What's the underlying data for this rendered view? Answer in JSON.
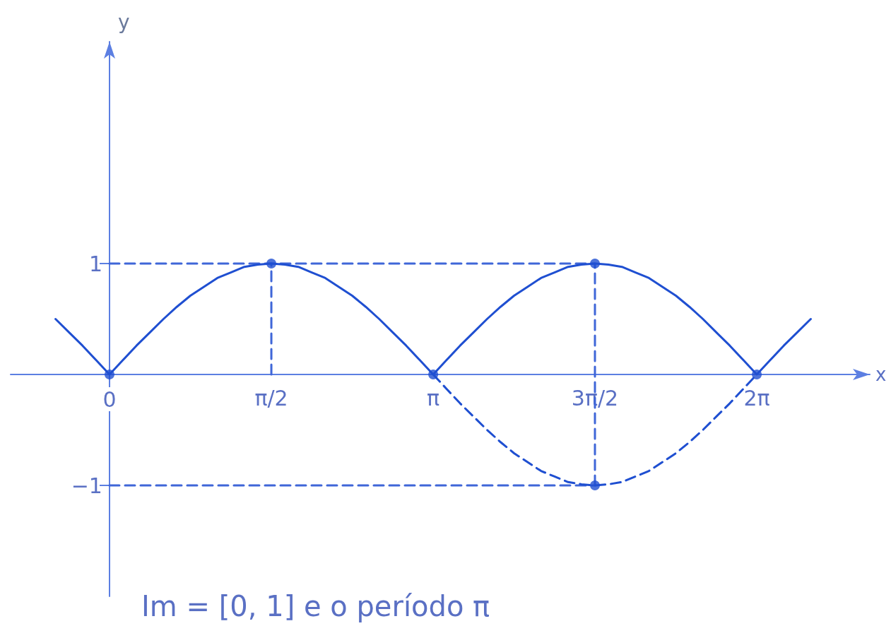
{
  "chart_data": {
    "type": "line",
    "xlabel": "x",
    "ylabel": "y",
    "annotations": [
      "Im = [0, 1] e o período π"
    ],
    "xlim": [
      -0.96,
      7.38
    ],
    "ylim": [
      -2,
      3
    ],
    "xticks": [
      0,
      {
        "value": 1.571,
        "label": "π/2"
      },
      {
        "value": 3.142,
        "label": "π"
      },
      {
        "value": 4.712,
        "label": "3π/2"
      },
      {
        "value": 6.283,
        "label": "2π"
      }
    ],
    "yticks": [
      {
        "value": -1,
        "label": "−1"
      },
      1
    ],
    "marker": "none",
    "series": [
      {
        "color": "#3f66d8",
        "line_style": "dashed",
        "x": [
          0,
          4.712
        ],
        "values": [
          1,
          1
        ]
      },
      {
        "color": "#3f66d8",
        "line_style": "dashed",
        "x": [
          0,
          4.712
        ],
        "values": [
          -1,
          -1
        ]
      },
      {
        "color": "#3f66d8",
        "line_style": "dashed",
        "x": [
          1.571,
          1.571
        ],
        "values": [
          0,
          1
        ]
      },
      {
        "color": "#3f66d8",
        "line_style": "dashed",
        "x": [
          4.712,
          4.712,
          4.712
        ],
        "values": [
          -1,
          0,
          1
        ]
      },
      {
        "color": "#1f4fd1",
        "line_style": "solid",
        "x": [
          -0.524,
          -0.393,
          -0.262,
          -0.131,
          0,
          0.131,
          0.262,
          0.393,
          0.524,
          0.654,
          0.785,
          0.916,
          1.047,
          1.178,
          1.309,
          1.44,
          1.571,
          1.702,
          1.833,
          1.963,
          2.094,
          2.225,
          2.356,
          2.487,
          2.618,
          2.749,
          2.88,
          3.011,
          3.142,
          3.272,
          3.403,
          3.534,
          3.665,
          3.796,
          3.927,
          4.058,
          4.189,
          4.32,
          4.451,
          4.581,
          4.712,
          4.843,
          4.974,
          5.105,
          5.236,
          5.367,
          5.498,
          5.629,
          5.76,
          5.89,
          6.021,
          6.152,
          6.283,
          6.414,
          6.545,
          6.676,
          6.807
        ],
        "values": [
          0.5,
          0.38,
          0.26,
          0.13,
          0,
          0.13,
          0.26,
          0.38,
          0.5,
          0.61,
          0.71,
          0.79,
          0.87,
          0.92,
          0.97,
          0.99,
          1,
          0.99,
          0.97,
          0.92,
          0.87,
          0.79,
          0.71,
          0.61,
          0.5,
          0.38,
          0.26,
          0.13,
          0,
          0.13,
          0.26,
          0.38,
          0.5,
          0.61,
          0.71,
          0.79,
          0.87,
          0.92,
          0.97,
          0.99,
          1,
          0.99,
          0.97,
          0.92,
          0.87,
          0.79,
          0.71,
          0.61,
          0.5,
          0.38,
          0.26,
          0.13,
          0,
          0.13,
          0.26,
          0.38,
          0.5
        ]
      },
      {
        "color": "#1f4fd1",
        "line_style": "dashed",
        "x": [
          3.142,
          3.272,
          3.403,
          3.534,
          3.665,
          3.796,
          3.927,
          4.058,
          4.189,
          4.32,
          4.451,
          4.581,
          4.712,
          4.843,
          4.974,
          5.105,
          5.236,
          5.367,
          5.498,
          5.629,
          5.76,
          5.89,
          6.021,
          6.152,
          6.283
        ],
        "values": [
          0,
          -0.13,
          -0.26,
          -0.38,
          -0.5,
          -0.61,
          -0.71,
          -0.79,
          -0.87,
          -0.92,
          -0.97,
          -0.99,
          -1,
          -0.99,
          -0.97,
          -0.92,
          -0.87,
          -0.79,
          -0.71,
          -0.61,
          -0.5,
          -0.38,
          -0.26,
          -0.13,
          0
        ]
      },
      {
        "type": "scatter",
        "color": "#1f4fd1",
        "marker": "circle",
        "x": [
          0,
          1.571,
          3.142,
          4.712,
          4.712,
          6.283
        ],
        "values": [
          0,
          1,
          0,
          1,
          -1,
          0
        ]
      }
    ]
  }
}
